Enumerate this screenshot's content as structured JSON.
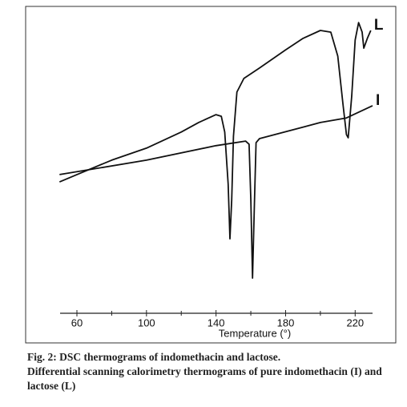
{
  "chart_data": {
    "type": "line",
    "x_label": "Temperature (°)",
    "caption_title": "Fig. 2: DSC thermograms of indomethacin and lactose.",
    "caption": "Differential scanning calorimetry thermograms of pure indomethacin (I) and lactose (L)",
    "xlim": [
      50,
      230
    ],
    "ylim": [
      0,
      100
    ],
    "xticks": [
      60,
      100,
      140,
      180,
      220
    ],
    "minor_xticks": [
      80,
      120,
      160,
      200
    ],
    "series": [
      {
        "name": "L",
        "color": "#111111",
        "x": [
          50,
          60,
          80,
          100,
          120,
          130,
          140,
          143,
          145,
          147,
          148,
          149,
          150,
          152,
          156,
          165,
          180,
          190,
          200,
          206,
          210,
          213,
          215,
          216,
          218,
          220,
          222,
          224,
          225,
          227,
          229
        ],
        "values": [
          39.1,
          41.8,
          47.1,
          51.5,
          57.4,
          60.9,
          63.8,
          63.2,
          57.4,
          38.2,
          18.2,
          32.4,
          55.9,
          72.1,
          77.1,
          80.9,
          87.6,
          91.8,
          94.7,
          94.1,
          85.3,
          67.6,
          56.5,
          55.3,
          70.6,
          91.2,
          97.6,
          94.1,
          88.2,
          91.8,
          94.7
        ]
      },
      {
        "name": "I",
        "color": "#111111",
        "x": [
          50,
          100,
          140,
          157,
          159,
          160,
          161,
          162,
          163,
          165,
          200,
          215,
          230
        ],
        "values": [
          41.8,
          47.1,
          52.4,
          54.1,
          52.9,
          32.4,
          3.8,
          29.4,
          53.5,
          55.0,
          60.9,
          62.6,
          67.1
        ]
      }
    ]
  }
}
